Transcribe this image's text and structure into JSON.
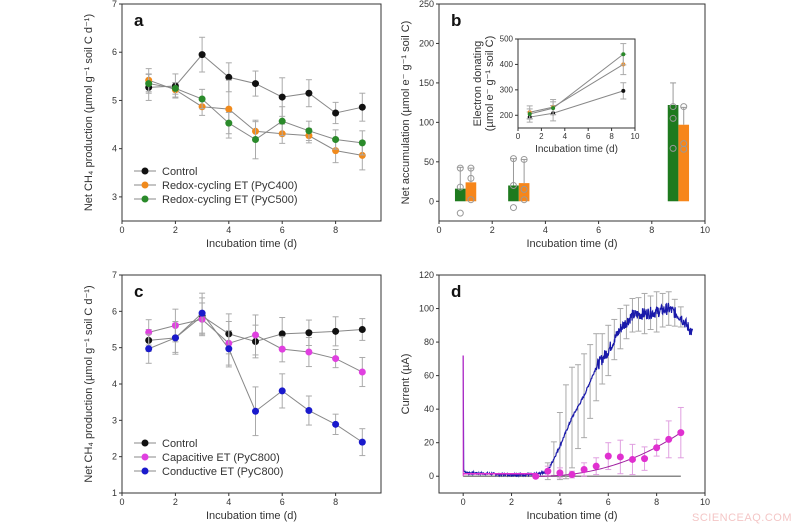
{
  "watermark": "SCIENCEAQ.COM",
  "chart_data": [
    {
      "id": "a",
      "type": "line",
      "panel_label": "a",
      "xlabel": "Incubation time (d)",
      "ylabel": "Net CH₄ production (µmol g⁻¹ soil C d⁻¹)",
      "xlim": [
        0,
        9.7
      ],
      "ylim": [
        2.5,
        7
      ],
      "xticks": [
        0,
        2,
        4,
        6,
        8
      ],
      "yticks": [
        3,
        4,
        5,
        6,
        7
      ],
      "legend": "bottom-left",
      "x": [
        1,
        2,
        3,
        4,
        5,
        6,
        7,
        8,
        9
      ],
      "series": [
        {
          "name": "Control",
          "color": "#111111",
          "values": [
            5.27,
            5.3,
            5.95,
            5.48,
            5.35,
            5.07,
            5.15,
            4.74,
            4.86
          ],
          "err": [
            0.27,
            0.25,
            0.36,
            0.3,
            0.26,
            0.4,
            0.28,
            0.22,
            0.29
          ]
        },
        {
          "name": "Redox-cycling ET (PyC400)",
          "color": "#f08a1c",
          "values": [
            5.42,
            5.22,
            4.87,
            4.82,
            4.36,
            4.31,
            4.27,
            3.96,
            3.86
          ],
          "err": [
            0.24,
            0.15,
            0.18,
            0.6,
            0.2,
            0.2,
            0.15,
            0.25,
            0.3
          ]
        },
        {
          "name": "Redox-cycling ET (PyC500)",
          "color": "#2a8a2a",
          "values": [
            5.35,
            5.25,
            5.03,
            4.53,
            4.19,
            4.57,
            4.37,
            4.19,
            4.12
          ],
          "err": [
            0.2,
            0.12,
            0.2,
            0.22,
            0.4,
            0.3,
            0.2,
            0.2,
            0.25
          ]
        }
      ]
    },
    {
      "id": "b",
      "type": "bar",
      "panel_label": "b",
      "xlabel": "Incubation time (d)",
      "ylabel": "Net accumulation (µmol e⁻ g⁻¹ soil C)",
      "xlim": [
        0,
        10
      ],
      "ylim": [
        -25,
        250
      ],
      "xticks": [
        0,
        2,
        4,
        6,
        8,
        10
      ],
      "yticks": [
        0,
        50,
        100,
        150,
        200,
        250
      ],
      "series": [
        {
          "name": "PyC500",
          "color": "#1e7a1e",
          "x": [
            0.8,
            2.8,
            8.8
          ],
          "values": [
            16,
            20,
            122
          ],
          "err": [
            27,
            34,
            28
          ],
          "points": [
            [
              42,
              18,
              -15
            ],
            [
              54,
              20,
              -8
            ],
            [
              120,
              105,
              67
            ]
          ]
        },
        {
          "name": "PyC400",
          "color": "#f7861a",
          "x": [
            1.2,
            3.2,
            9.2
          ],
          "values": [
            24,
            23,
            97
          ],
          "err": [
            18,
            30,
            22
          ],
          "points": [
            [
              42,
              29,
              2
            ],
            [
              53,
              15,
              2
            ],
            [
              120,
              66,
              73
            ]
          ]
        }
      ],
      "inset": {
        "type": "line",
        "xlabel": "Incubation time (d)",
        "ylabel": "Electron donating",
        "ylabel2": "(µmol e⁻ g⁻¹ soil C)",
        "xlim": [
          0,
          10
        ],
        "ylim": [
          150,
          500
        ],
        "xticks": [
          0,
          2,
          4,
          6,
          8,
          10
        ],
        "yticks": [
          200,
          300,
          400,
          500
        ],
        "x": [
          1,
          3,
          9
        ],
        "series": [
          {
            "name": "Control",
            "color": "#111111",
            "values": [
              193,
              208,
              296
            ],
            "err": [
              20,
              30,
              32
            ]
          },
          {
            "name": "PyC400",
            "color": "#f08a1c",
            "values": [
              212,
              232,
              400
            ],
            "err": [
              25,
              30,
              40
            ]
          },
          {
            "name": "PyC500",
            "color": "#2a8a2a",
            "values": [
              205,
              228,
              440
            ],
            "err": [
              20,
              25,
              42
            ]
          }
        ]
      }
    },
    {
      "id": "c",
      "type": "line",
      "panel_label": "c",
      "xlabel": "Incubation time (d)",
      "ylabel": "Net CH₄ production (µmol g⁻¹ soil C d⁻¹)",
      "xlim": [
        0,
        9.7
      ],
      "ylim": [
        1,
        7
      ],
      "xticks": [
        0,
        2,
        4,
        6,
        8
      ],
      "yticks": [
        1,
        2,
        3,
        4,
        5,
        6,
        7
      ],
      "legend": "bottom-left",
      "x": [
        1,
        2,
        3,
        4,
        5,
        6,
        7,
        8,
        9
      ],
      "series": [
        {
          "name": "Control",
          "color": "#111111",
          "values": [
            5.2,
            5.27,
            5.87,
            5.38,
            5.17,
            5.38,
            5.41,
            5.45,
            5.5
          ],
          "err": [
            0.3,
            0.4,
            0.5,
            0.55,
            0.45,
            0.45,
            0.35,
            0.4,
            0.3
          ]
        },
        {
          "name": "Capacitive ET (PyC800)",
          "color": "#e040e0",
          "values": [
            5.42,
            5.61,
            5.78,
            5.12,
            5.35,
            4.96,
            4.88,
            4.7,
            4.33
          ],
          "err": [
            0.35,
            0.45,
            0.45,
            0.6,
            0.55,
            0.35,
            0.4,
            0.25,
            0.4
          ]
        },
        {
          "name": "Conductive ET (PyC800)",
          "color": "#1a1acc",
          "values": [
            4.97,
            5.27,
            5.95,
            4.97,
            3.25,
            3.81,
            3.27,
            2.89,
            2.4
          ],
          "err": [
            0.4,
            0.45,
            0.55,
            0.5,
            0.67,
            0.47,
            0.4,
            0.28,
            0.37
          ]
        }
      ]
    },
    {
      "id": "d",
      "type": "line",
      "panel_label": "d",
      "xlabel": "Incubation time (d)",
      "ylabel": "Current (µA)",
      "xlim": [
        -1,
        10
      ],
      "ylim": [
        -10,
        120
      ],
      "xticks": [
        0,
        2,
        4,
        6,
        8,
        10
      ],
      "yticks": [
        0,
        20,
        40,
        60,
        80,
        100,
        120
      ],
      "conductive_curve": {
        "color": "#1a1aaa",
        "x": [
          0,
          0.02,
          0.1,
          1,
          2,
          3,
          3.5,
          4,
          4.5,
          5,
          5.5,
          6,
          6.5,
          7,
          7.5,
          8,
          8.5,
          9,
          9.5
        ],
        "values": [
          72,
          4,
          2,
          1.5,
          1,
          1,
          3,
          18,
          35,
          48,
          65,
          75,
          88,
          96,
          97,
          98,
          100,
          95,
          85
        ]
      },
      "conductive_err": {
        "x": [
          3.5,
          3.75,
          4,
          4.25,
          4.5,
          4.75,
          5,
          5.25,
          5.5,
          5.75,
          6,
          6.25,
          6.5,
          6.75,
          7,
          7.25,
          7.5,
          7.75,
          8,
          8.25,
          8.5,
          8.75,
          9
        ],
        "values": [
          5,
          10,
          20,
          28,
          30,
          25,
          25,
          22,
          20,
          15,
          15,
          12,
          12,
          10,
          10,
          10,
          12,
          10,
          12,
          10,
          10,
          8,
          6
        ]
      },
      "capacitive_points": {
        "color": "#e030d0",
        "x": [
          3,
          3.5,
          4,
          4.5,
          5,
          5.5,
          6,
          6.5,
          7,
          7.5,
          8,
          8.5,
          9
        ],
        "values": [
          0,
          3,
          2,
          1,
          4,
          6,
          12,
          11.5,
          10,
          10.5,
          17,
          22,
          26
        ],
        "err": [
          1,
          3,
          3,
          2,
          4,
          5,
          8,
          10,
          9,
          7,
          5,
          11,
          15
        ]
      },
      "baseline": {
        "color": "#888888",
        "x": [
          0,
          9
        ],
        "values": [
          0,
          0
        ]
      }
    }
  ]
}
